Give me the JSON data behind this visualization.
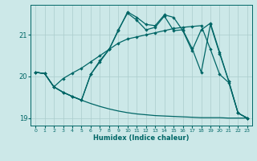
{
  "xlabel": "Humidex (Indice chaleur)",
  "bg_color": "#cce8e8",
  "grid_color": "#aacccc",
  "line_color": "#006666",
  "xlim": [
    -0.5,
    23.5
  ],
  "ylim": [
    18.82,
    21.72
  ],
  "yticks": [
    19,
    20,
    21
  ],
  "xticks": [
    0,
    1,
    2,
    3,
    4,
    5,
    6,
    7,
    8,
    9,
    10,
    11,
    12,
    13,
    14,
    15,
    16,
    17,
    18,
    19,
    20,
    21,
    22,
    23
  ],
  "line1_x": [
    0,
    1,
    2,
    3,
    4,
    5,
    6,
    7,
    8,
    9,
    10,
    11,
    12,
    13,
    14,
    15,
    16,
    17,
    18,
    19,
    20,
    21,
    22,
    23
  ],
  "line1_y": [
    20.1,
    20.07,
    19.75,
    19.62,
    19.52,
    19.43,
    19.35,
    19.28,
    19.22,
    19.17,
    19.13,
    19.1,
    19.08,
    19.06,
    19.05,
    19.04,
    19.03,
    19.02,
    19.01,
    19.01,
    19.01,
    19.0,
    19.0,
    19.0
  ],
  "line2_x": [
    0,
    1,
    2,
    3,
    4,
    5,
    6,
    7,
    8,
    9,
    10,
    11,
    12,
    13,
    14,
    15,
    16,
    17,
    18,
    19,
    20,
    21,
    22,
    23
  ],
  "line2_y": [
    20.1,
    20.07,
    19.75,
    19.95,
    20.08,
    20.2,
    20.35,
    20.5,
    20.65,
    20.8,
    20.9,
    20.95,
    21.0,
    21.05,
    21.1,
    21.15,
    21.18,
    21.2,
    21.22,
    20.65,
    20.05,
    19.85,
    19.12,
    19.0
  ],
  "line3_x": [
    0,
    1,
    2,
    3,
    4,
    5,
    6,
    7,
    8,
    9,
    10,
    11,
    12,
    13,
    14,
    15,
    16,
    17,
    18,
    19,
    20,
    21,
    22,
    23
  ],
  "line3_y": [
    20.1,
    20.07,
    19.75,
    19.62,
    19.52,
    19.43,
    20.05,
    20.38,
    20.65,
    21.12,
    21.52,
    21.35,
    21.12,
    21.18,
    21.45,
    21.1,
    21.12,
    20.68,
    20.1,
    21.25,
    20.55,
    19.88,
    19.12,
    19.0
  ],
  "line4_x": [
    0,
    1,
    2,
    3,
    4,
    5,
    6,
    7,
    8,
    9,
    10,
    11,
    12,
    13,
    14,
    15,
    16,
    17,
    18,
    19,
    20,
    21,
    22,
    23
  ],
  "line4_y": [
    20.1,
    20.07,
    19.75,
    19.62,
    19.52,
    19.43,
    20.05,
    20.35,
    20.65,
    21.1,
    21.55,
    21.42,
    21.25,
    21.22,
    21.48,
    21.42,
    21.1,
    20.62,
    21.12,
    21.28,
    20.58,
    19.88,
    19.12,
    19.0
  ]
}
